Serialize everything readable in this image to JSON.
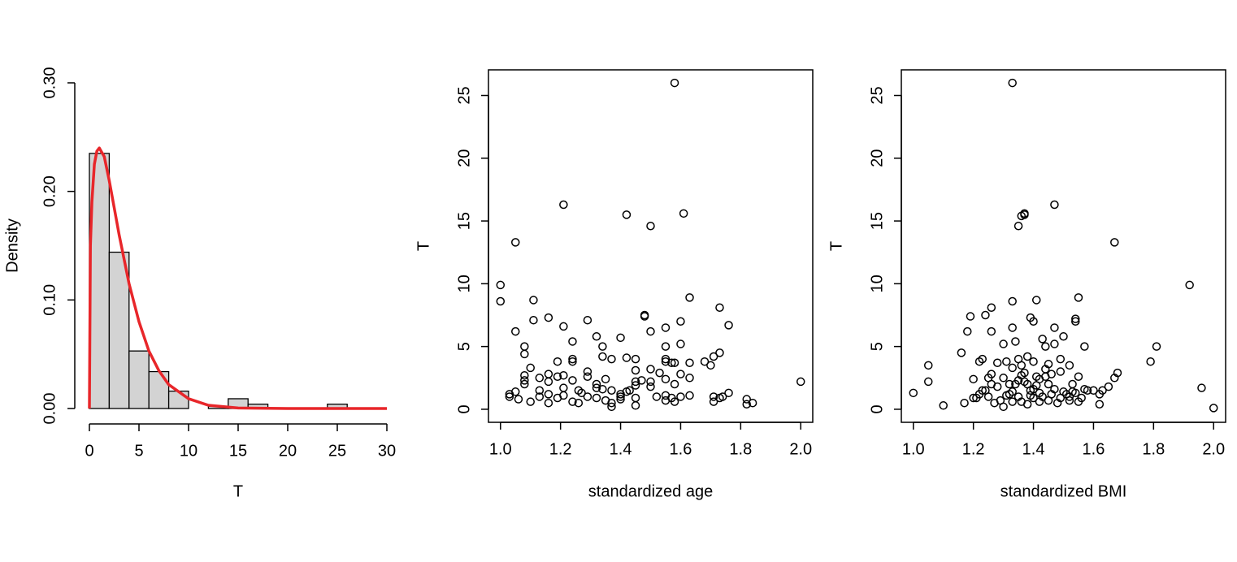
{
  "chart_data": [
    {
      "type": "histogram",
      "x_label": "T",
      "y_label": "Density",
      "bins": [
        0,
        2,
        4,
        6,
        8,
        10,
        12,
        14,
        16,
        18,
        20,
        22,
        24,
        26
      ],
      "values": [
        0.235,
        0.144,
        0.053,
        0.034,
        0.016,
        0,
        0.002,
        0.009,
        0.004,
        0,
        0,
        0,
        0.004
      ],
      "color": "#d3d3d3",
      "curve": {
        "color": "#e8262a",
        "x": [
          0,
          0.1,
          0.25,
          0.5,
          0.75,
          1,
          1.5,
          2,
          2.5,
          3,
          4,
          5,
          6,
          7,
          8,
          10,
          12,
          15,
          20,
          30
        ],
        "values": [
          0,
          0.15,
          0.19,
          0.225,
          0.237,
          0.24,
          0.232,
          0.21,
          0.185,
          0.16,
          0.115,
          0.08,
          0.053,
          0.035,
          0.022,
          0.009,
          0.003,
          0.0005,
          0,
          0
        ]
      },
      "xlim": [
        0,
        30
      ],
      "xticks": [
        0,
        5,
        10,
        15,
        20,
        25,
        30
      ],
      "ylim": [
        0,
        0.3
      ],
      "yticks": [
        {
          "value": 0,
          "label": "0.00"
        },
        {
          "value": 0.1,
          "label": "0.10"
        },
        {
          "value": 0.2,
          "label": "0.20"
        },
        {
          "value": 0.3,
          "label": "0.30"
        }
      ]
    },
    {
      "type": "scatter",
      "x_label": "standardized age",
      "y_label": "T",
      "x": [
        1.58,
        1.21,
        1.42,
        1.61,
        1.5,
        1.05,
        1.0,
        1.0,
        1.11,
        1.63,
        1.73,
        1.16,
        1.11,
        1.29,
        1.48,
        1.48,
        1.6,
        1.76,
        1.21,
        1.05,
        1.5,
        1.55,
        1.32,
        1.4,
        1.24,
        1.6,
        1.08,
        1.34,
        1.55,
        1.08,
        1.34,
        1.42,
        1.45,
        1.55,
        1.55,
        1.57,
        1.73,
        1.71,
        1.7,
        1.68,
        1.63,
        1.19,
        1.24,
        1.24,
        1.37,
        1.5,
        1.53,
        1.6,
        1.63,
        1.58,
        1.55,
        1.47,
        1.45,
        1.45,
        1.5,
        1.42,
        1.4,
        1.37,
        1.34,
        1.32,
        1.29,
        1.29,
        1.26,
        1.24,
        1.21,
        1.19,
        1.16,
        1.16,
        1.13,
        1.13,
        1.1,
        1.08,
        1.08,
        1.08,
        1.05,
        1.03,
        1.03,
        1.06,
        1.1,
        1.16,
        1.19,
        1.21,
        1.24,
        1.26,
        1.29,
        1.32,
        1.35,
        1.37,
        1.37,
        1.4,
        1.4,
        1.43,
        1.45,
        1.45,
        1.52,
        1.55,
        1.55,
        1.57,
        1.58,
        1.71,
        1.71,
        1.73,
        1.74,
        1.76,
        1.82,
        1.82,
        1.84,
        2.0,
        1.16,
        1.21,
        1.27,
        1.32,
        1.35,
        1.45,
        1.5,
        1.58,
        1.6,
        1.63,
        1.13
      ],
      "values": [
        26,
        16.3,
        15.5,
        15.6,
        14.6,
        13.3,
        9.9,
        8.6,
        8.7,
        8.9,
        8.1,
        7.3,
        7.1,
        7.1,
        7.5,
        7.4,
        7.0,
        6.7,
        6.6,
        6.2,
        6.2,
        6.5,
        5.8,
        5.7,
        5.4,
        5.2,
        5.0,
        5.0,
        5.0,
        4.4,
        4.2,
        4.1,
        4.0,
        4.0,
        3.8,
        3.7,
        4.5,
        4.2,
        3.5,
        3.8,
        3.7,
        3.8,
        4.0,
        3.8,
        4.0,
        3.2,
        2.9,
        2.8,
        2.5,
        2.0,
        2.4,
        2.3,
        2.2,
        1.9,
        1.8,
        1.4,
        1.2,
        1.5,
        1.6,
        2.0,
        2.6,
        3.0,
        1.5,
        2.3,
        2.7,
        2.6,
        2.8,
        2.2,
        2.5,
        1.5,
        3.3,
        2.7,
        2.3,
        2.0,
        1.4,
        1.2,
        1.0,
        0.8,
        0.6,
        0.5,
        0.9,
        1.1,
        0.6,
        0.5,
        1.0,
        1.7,
        0.7,
        0.5,
        0.2,
        0.8,
        1.0,
        1.5,
        0.3,
        0.9,
        1.0,
        1.1,
        0.7,
        0.9,
        0.6,
        1.0,
        0.6,
        0.9,
        1.0,
        1.3,
        0.8,
        0.4,
        0.5,
        2.2,
        1.2,
        1.7,
        1.3,
        0.9,
        2.4,
        3.1,
        2.2,
        3.7,
        1.0,
        1.1,
        1.0
      ],
      "xlim": [
        0.96,
        2.04
      ],
      "xticks": [
        {
          "value": 1,
          "label": "1.0"
        },
        1.2,
        1.4,
        1.6,
        1.8,
        {
          "value": 2,
          "label": "2.0"
        }
      ],
      "ylim": [
        -1.04,
        27.04
      ],
      "yticks": [
        0,
        5,
        10,
        15,
        20,
        25
      ]
    },
    {
      "type": "scatter",
      "x_label": "standardized BMI",
      "y_label": "T",
      "x": [
        1.33,
        1.47,
        1.37,
        1.37,
        1.36,
        1.35,
        1.67,
        1.92,
        1.55,
        1.33,
        1.41,
        1.26,
        1.19,
        1.54,
        1.54,
        1.39,
        1.4,
        1.47,
        1.24,
        1.18,
        1.26,
        1.5,
        1.43,
        1.33,
        1.3,
        1.47,
        1.44,
        1.34,
        1.81,
        1.57,
        1.16,
        1.23,
        1.22,
        1.35,
        1.38,
        1.33,
        1.36,
        1.4,
        1.45,
        1.49,
        1.52,
        1.79,
        1.68,
        1.67,
        1.05,
        1.05,
        1.0,
        1.1,
        1.17,
        1.2,
        1.2,
        1.25,
        1.26,
        1.28,
        1.3,
        1.32,
        1.33,
        1.35,
        1.36,
        1.37,
        1.38,
        1.4,
        1.41,
        1.42,
        1.44,
        1.45,
        1.46,
        1.47,
        1.49,
        1.5,
        1.51,
        1.52,
        1.53,
        1.54,
        1.55,
        1.56,
        1.58,
        1.6,
        1.62,
        1.63,
        1.65,
        1.62,
        1.55,
        1.52,
        1.48,
        1.45,
        1.42,
        1.4,
        1.38,
        1.35,
        1.33,
        1.31,
        1.29,
        1.27,
        1.25,
        1.22,
        1.21,
        1.23,
        1.3,
        1.36,
        1.39,
        1.43,
        1.46,
        1.49,
        1.53,
        1.57,
        1.96,
        2.0,
        1.28,
        1.31,
        1.37,
        1.41,
        1.44,
        1.34,
        1.39,
        1.32,
        1.26,
        1.24,
        1.42
      ],
      "values": [
        26,
        16.3,
        15.6,
        15.5,
        15.4,
        14.6,
        13.3,
        9.9,
        8.9,
        8.6,
        8.7,
        8.1,
        7.4,
        7.2,
        7.0,
        7.3,
        7.0,
        6.5,
        7.5,
        6.2,
        6.2,
        5.8,
        5.6,
        6.5,
        5.2,
        5.2,
        5.0,
        5.4,
        5.0,
        5.0,
        4.5,
        4.0,
        3.8,
        4.0,
        4.2,
        3.3,
        3.5,
        3.8,
        3.6,
        4.0,
        3.5,
        3.8,
        2.9,
        2.5,
        3.5,
        2.2,
        1.3,
        0.3,
        0.5,
        0.9,
        2.4,
        2.5,
        2.0,
        1.8,
        2.5,
        2.0,
        1.4,
        2.3,
        2.7,
        2.2,
        2.0,
        1.6,
        2.6,
        2.4,
        2.6,
        2.0,
        2.8,
        1.6,
        3.0,
        1.4,
        1.2,
        1.0,
        2.0,
        1.3,
        2.6,
        0.9,
        1.5,
        1.5,
        1.2,
        1.5,
        1.8,
        0.4,
        0.6,
        0.7,
        0.5,
        0.7,
        0.6,
        0.9,
        0.4,
        1.0,
        0.6,
        1.1,
        0.7,
        0.5,
        1.0,
        1.2,
        0.9,
        1.5,
        0.2,
        0.6,
        1.1,
        1.0,
        1.2,
        0.9,
        1.4,
        1.6,
        1.7,
        0.1,
        3.7,
        3.8,
        2.9,
        1.9,
        3.2,
        2.0,
        1.5,
        1.2,
        2.8,
        1.5,
        1.3
      ],
      "xlim": [
        0.96,
        2.04
      ],
      "xticks": [
        {
          "value": 1,
          "label": "1.0"
        },
        1.2,
        1.4,
        1.6,
        1.8,
        {
          "value": 2,
          "label": "2.0"
        }
      ],
      "ylim": [
        -1.04,
        27.04
      ],
      "yticks": [
        0,
        5,
        10,
        15,
        20,
        25
      ]
    }
  ]
}
